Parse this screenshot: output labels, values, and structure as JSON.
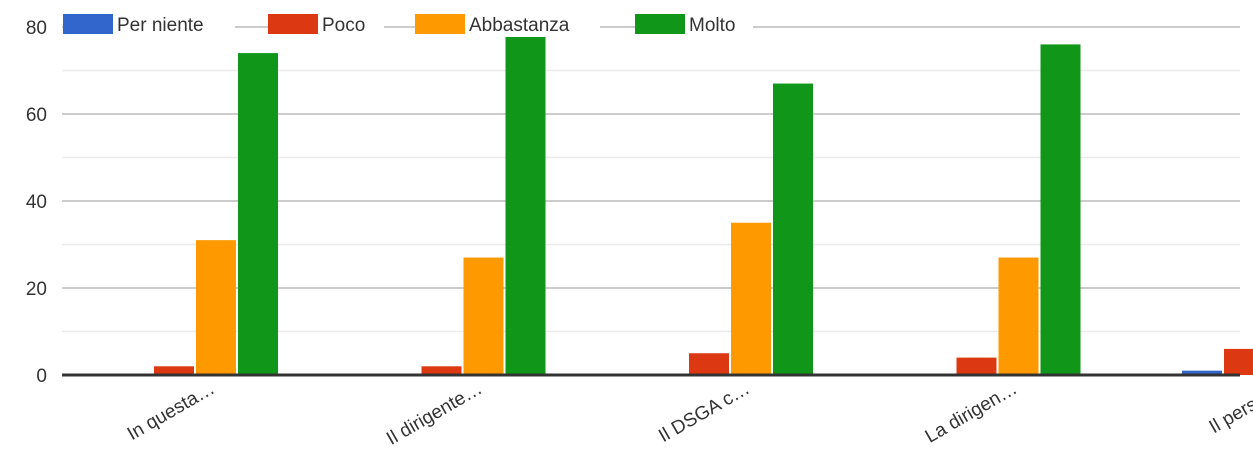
{
  "chart_data": {
    "type": "bar",
    "title": "",
    "xlabel": "",
    "ylabel": "",
    "ylim": [
      0,
      80
    ],
    "y_ticks": [
      "0",
      "20",
      "40",
      "60",
      "80"
    ],
    "grid": true,
    "legend_position": "top",
    "categories": [
      "In questa…",
      "Il dirigente…",
      "Il DSGA c…",
      "La dirigen…",
      "Il persona"
    ],
    "series": [
      {
        "name": "Per niente",
        "color": "#3366cc",
        "values": [
          0,
          0,
          0,
          0,
          1
        ]
      },
      {
        "name": "Poco",
        "color": "#dc3912",
        "values": [
          2,
          2,
          5,
          4,
          6
        ]
      },
      {
        "name": "Abbastanza",
        "color": "#ff9900",
        "values": [
          31,
          27,
          35,
          27,
          0
        ]
      },
      {
        "name": "Molto",
        "color": "#109618",
        "values": [
          74,
          78,
          67,
          76,
          0
        ]
      }
    ]
  }
}
